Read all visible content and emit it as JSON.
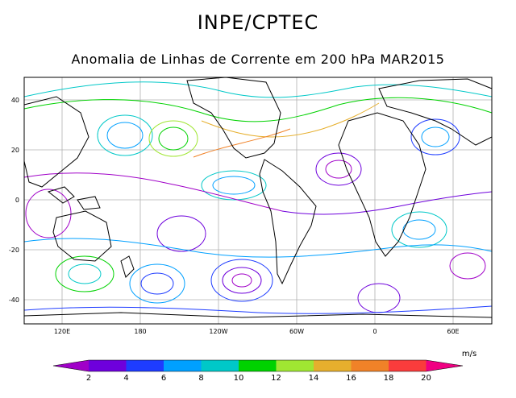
{
  "header": {
    "title": "INPE/CPTEC",
    "subtitle": "Anomalia de Linhas de Corrente em 200 hPa MAR2015"
  },
  "map": {
    "lat_ticks": [
      "40",
      "20",
      "0",
      "-20",
      "-40"
    ],
    "lon_ticks": [
      "120E",
      "180",
      "120W",
      "60W",
      "0",
      "60E"
    ]
  },
  "colorbar": {
    "unit": "m/s",
    "labels": [
      "2",
      "4",
      "6",
      "8",
      "10",
      "12",
      "14",
      "16",
      "18",
      "20"
    ],
    "colors": [
      "#a000c8",
      "#6e00dc",
      "#1e3cff",
      "#00a0ff",
      "#00c8c8",
      "#00d200",
      "#a0e632",
      "#e6af2d",
      "#f08228",
      "#fa3c3c",
      "#f00082"
    ]
  }
}
